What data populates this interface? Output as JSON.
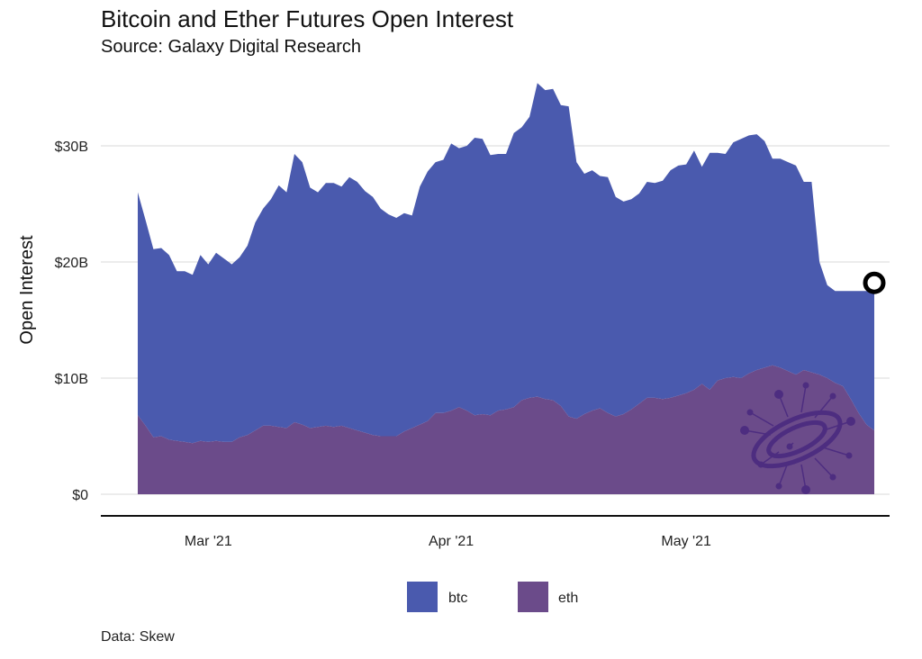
{
  "chart_data": {
    "type": "area",
    "stacked": true,
    "title": "Bitcoin and Ether Futures Open Interest",
    "subtitle": "Source: Galaxy Digital Research",
    "ylabel": "Open Interest",
    "xlabel": "",
    "caption": "Data: Skew",
    "ylim": [
      0,
      36
    ],
    "yunit": "B USD",
    "yticks": [
      {
        "value": 0,
        "label": "$0"
      },
      {
        "value": 10,
        "label": "$10B"
      },
      {
        "value": 20,
        "label": "$20B"
      },
      {
        "value": 30,
        "label": "$30B"
      }
    ],
    "xlim": [
      0,
      94
    ],
    "xticks": [
      {
        "value": 9,
        "label": "Mar '21"
      },
      {
        "value": 40,
        "label": "Apr '21"
      },
      {
        "value": 70,
        "label": "May '21"
      }
    ],
    "x": [
      0,
      1,
      2,
      3,
      4,
      5,
      6,
      7,
      8,
      9,
      10,
      11,
      12,
      13,
      14,
      15,
      16,
      17,
      18,
      19,
      20,
      21,
      22,
      23,
      24,
      25,
      26,
      27,
      28,
      29,
      30,
      31,
      32,
      33,
      34,
      35,
      36,
      37,
      38,
      39,
      40,
      41,
      42,
      43,
      44,
      45,
      46,
      47,
      48,
      49,
      50,
      51,
      52,
      53,
      54,
      55,
      56,
      57,
      58,
      59,
      60,
      61,
      62,
      63,
      64,
      65,
      66,
      67,
      68,
      69,
      70,
      71,
      72,
      73,
      74,
      75,
      76,
      77,
      78,
      79,
      80,
      81,
      82,
      83,
      84,
      85,
      86,
      87,
      88,
      89,
      90,
      91,
      92,
      93,
      94
    ],
    "series": [
      {
        "name": "eth",
        "color": "#6b4b8a",
        "values": [
          6.8,
          5.9,
          4.9,
          5.0,
          4.7,
          4.6,
          4.5,
          4.4,
          4.6,
          4.5,
          4.6,
          4.5,
          4.5,
          4.9,
          5.1,
          5.5,
          5.9,
          5.9,
          5.8,
          5.7,
          6.2,
          6.0,
          5.7,
          5.8,
          5.9,
          5.8,
          5.9,
          5.7,
          5.5,
          5.3,
          5.1,
          5.0,
          5.0,
          5.0,
          5.4,
          5.7,
          6.0,
          6.3,
          7.0,
          7.0,
          7.2,
          7.5,
          7.2,
          6.8,
          6.9,
          6.8,
          7.2,
          7.3,
          7.5,
          8.1,
          8.3,
          8.4,
          8.2,
          8.1,
          7.6,
          6.7,
          6.5,
          6.9,
          7.2,
          7.4,
          7.0,
          6.7,
          6.9,
          7.3,
          7.8,
          8.3,
          8.3,
          8.2,
          8.3,
          8.5,
          8.7,
          9.0,
          9.5,
          9.0,
          9.8,
          10.0,
          10.1,
          10.0,
          10.4,
          10.7,
          10.9,
          11.1,
          10.9,
          10.6,
          10.3,
          10.7,
          10.5,
          10.3,
          10.0,
          9.6,
          9.3,
          8.2,
          7.0,
          6.0,
          5.5
        ],
        "totals": [
          26.0,
          23.6,
          21.1,
          21.2,
          20.6,
          19.2,
          19.2,
          18.9,
          20.6,
          19.8,
          20.8,
          20.3,
          19.8,
          20.4,
          21.4,
          23.4,
          24.6,
          25.4,
          26.6,
          26.0,
          29.3,
          28.6,
          26.4,
          26.0,
          26.8,
          26.8,
          26.5,
          27.3,
          26.9,
          26.1,
          25.6,
          24.6,
          24.1,
          23.8,
          24.2,
          24.0,
          26.5,
          27.8,
          28.6,
          28.8,
          30.2,
          29.8,
          30.0,
          30.7,
          30.6,
          29.2,
          29.3,
          29.3,
          31.1,
          31.6,
          32.5,
          35.4,
          34.8,
          34.9,
          33.5,
          33.4,
          28.6,
          27.6,
          27.9,
          27.4,
          27.3,
          25.6,
          25.2,
          25.4,
          25.9,
          26.9,
          26.8,
          27.0,
          27.9,
          28.3,
          28.4,
          29.6,
          28.2,
          29.4,
          29.4,
          29.3,
          30.3,
          30.6,
          30.9,
          31.0,
          30.4,
          28.9,
          28.9,
          28.6,
          28.3,
          26.9,
          26.9,
          20.0,
          18.0,
          17.5,
          17.5,
          17.5,
          17.5,
          17.5,
          17.5
        ]
      },
      {
        "name": "btc",
        "color": "#4a5aae",
        "values": [
          19.2,
          17.7,
          16.2,
          16.2,
          15.9,
          14.6,
          14.7,
          14.5,
          16.0,
          15.3,
          16.2,
          15.8,
          15.3,
          15.5,
          16.3,
          17.9,
          18.7,
          19.5,
          20.8,
          20.3,
          23.1,
          22.6,
          20.7,
          20.2,
          20.9,
          21.0,
          20.6,
          21.6,
          21.4,
          20.8,
          20.5,
          19.6,
          19.1,
          18.8,
          18.8,
          18.3,
          20.5,
          21.5,
          21.6,
          21.8,
          23.0,
          22.3,
          22.8,
          23.9,
          23.7,
          22.4,
          22.1,
          22.0,
          23.6,
          23.5,
          24.2,
          27.0,
          26.6,
          26.8,
          25.9,
          26.7,
          22.1,
          20.7,
          20.7,
          20.0,
          20.3,
          18.9,
          18.3,
          18.1,
          18.1,
          18.6,
          18.5,
          18.8,
          19.6,
          19.8,
          19.7,
          20.6,
          18.7,
          20.4,
          19.6,
          19.3,
          20.2,
          20.6,
          20.5,
          20.3,
          19.5,
          17.8,
          18.0,
          18.0,
          18.0,
          16.2,
          16.4,
          9.7,
          8.0,
          7.9,
          8.2,
          9.3,
          10.5,
          11.5,
          12.0
        ]
      }
    ],
    "marker": {
      "x": 94,
      "y": 18.2
    },
    "legend": {
      "position": "bottom",
      "items": [
        {
          "label": "btc",
          "color": "#4a5aae"
        },
        {
          "label": "eth",
          "color": "#6b4b8a"
        }
      ]
    }
  },
  "logo": {
    "name": "galaxy-logo-icon",
    "color": "#4a2a80"
  }
}
